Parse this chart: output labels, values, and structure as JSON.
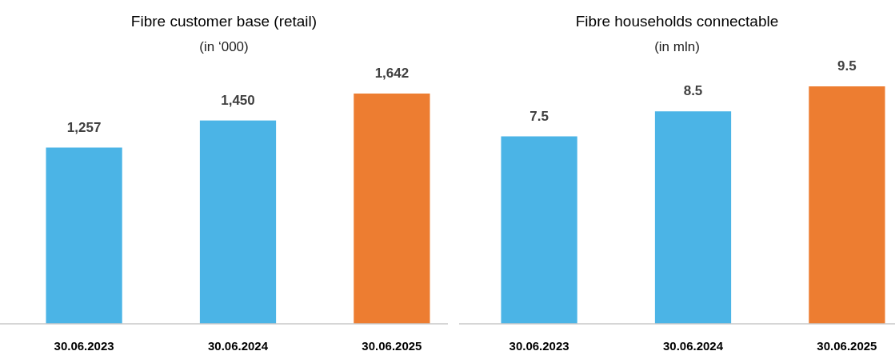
{
  "chart_data": [
    {
      "type": "bar",
      "title": "Fibre customer base (retail)",
      "subtitle": "(in ‘000)",
      "categories": [
        "30.06.2023",
        "30.06.2024",
        "30.06.2025"
      ],
      "values": [
        1257,
        1450,
        1642
      ],
      "colors": [
        "#4bb4e6",
        "#4bb4e6",
        "#ed7d31"
      ],
      "value_labels": [
        "1,257",
        "1,450",
        "1,642"
      ],
      "tick_labels": "x"
    },
    {
      "type": "bar",
      "title": "Fibre households connectable",
      "subtitle": "(in mln)",
      "categories": [
        "30.06.2023",
        "30.06.2024",
        "30.06.2025"
      ],
      "values": [
        7.5,
        8.5,
        9.5
      ],
      "colors": [
        "#4bb4e6",
        "#4bb4e6",
        "#ed7d31"
      ],
      "data_labels": true,
      "tick_labels": "x"
    }
  ]
}
